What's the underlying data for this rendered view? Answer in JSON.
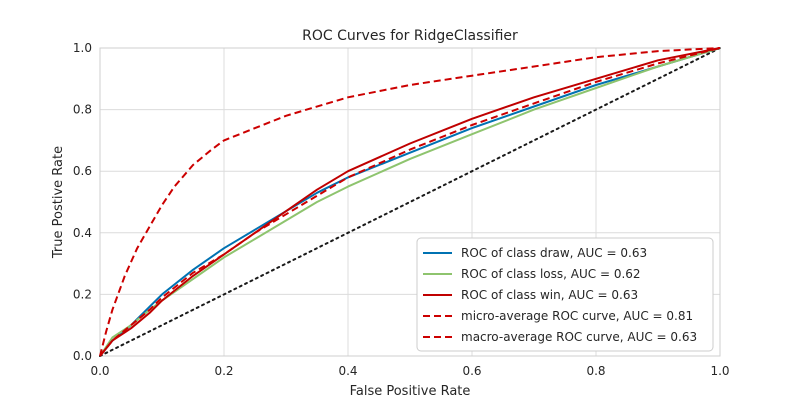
{
  "chart_data": {
    "type": "line",
    "title": "ROC Curves for RidgeClassifier",
    "xlabel": "False Positive Rate",
    "ylabel": "True Postive Rate",
    "xlim": [
      0,
      1
    ],
    "ylim": [
      0,
      1
    ],
    "xticks": [
      "0.0",
      "0.2",
      "0.4",
      "0.6",
      "0.8",
      "1.0"
    ],
    "yticks": [
      "0.0",
      "0.2",
      "0.4",
      "0.6",
      "0.8",
      "1.0"
    ],
    "grid": true,
    "legend_position": "lower-right",
    "series": [
      {
        "name": "ROC of class draw, AUC = 0.63",
        "color": "#0072B2",
        "dash": "solid",
        "points": [
          [
            0,
            0
          ],
          [
            0.02,
            0.05
          ],
          [
            0.05,
            0.1
          ],
          [
            0.08,
            0.16
          ],
          [
            0.1,
            0.2
          ],
          [
            0.15,
            0.28
          ],
          [
            0.2,
            0.35
          ],
          [
            0.25,
            0.41
          ],
          [
            0.3,
            0.47
          ],
          [
            0.35,
            0.53
          ],
          [
            0.4,
            0.58
          ],
          [
            0.5,
            0.66
          ],
          [
            0.6,
            0.74
          ],
          [
            0.7,
            0.81
          ],
          [
            0.8,
            0.88
          ],
          [
            0.9,
            0.94
          ],
          [
            1,
            1
          ]
        ]
      },
      {
        "name": "ROC of class loss, AUC = 0.62",
        "color": "#8EC46E",
        "dash": "solid",
        "points": [
          [
            0,
            0
          ],
          [
            0.02,
            0.06
          ],
          [
            0.05,
            0.1
          ],
          [
            0.08,
            0.15
          ],
          [
            0.1,
            0.18
          ],
          [
            0.15,
            0.25
          ],
          [
            0.2,
            0.32
          ],
          [
            0.25,
            0.38
          ],
          [
            0.3,
            0.44
          ],
          [
            0.35,
            0.5
          ],
          [
            0.4,
            0.55
          ],
          [
            0.5,
            0.64
          ],
          [
            0.6,
            0.72
          ],
          [
            0.7,
            0.8
          ],
          [
            0.8,
            0.87
          ],
          [
            0.9,
            0.94
          ],
          [
            1,
            1
          ]
        ]
      },
      {
        "name": "ROC of class win, AUC = 0.63",
        "color": "#C00000",
        "dash": "solid",
        "points": [
          [
            0,
            0
          ],
          [
            0.02,
            0.05
          ],
          [
            0.05,
            0.09
          ],
          [
            0.08,
            0.14
          ],
          [
            0.1,
            0.18
          ],
          [
            0.15,
            0.26
          ],
          [
            0.2,
            0.33
          ],
          [
            0.25,
            0.4
          ],
          [
            0.3,
            0.47
          ],
          [
            0.35,
            0.54
          ],
          [
            0.4,
            0.6
          ],
          [
            0.5,
            0.69
          ],
          [
            0.6,
            0.77
          ],
          [
            0.7,
            0.84
          ],
          [
            0.8,
            0.9
          ],
          [
            0.9,
            0.96
          ],
          [
            1,
            1
          ]
        ]
      },
      {
        "name": "micro-average ROC curve, AUC = 0.81",
        "color": "#CC0000",
        "dash": "dashed",
        "points": [
          [
            0,
            0
          ],
          [
            0.01,
            0.08
          ],
          [
            0.02,
            0.15
          ],
          [
            0.04,
            0.26
          ],
          [
            0.06,
            0.35
          ],
          [
            0.08,
            0.42
          ],
          [
            0.1,
            0.49
          ],
          [
            0.12,
            0.55
          ],
          [
            0.15,
            0.62
          ],
          [
            0.18,
            0.67
          ],
          [
            0.2,
            0.7
          ],
          [
            0.25,
            0.74
          ],
          [
            0.3,
            0.78
          ],
          [
            0.4,
            0.84
          ],
          [
            0.5,
            0.88
          ],
          [
            0.6,
            0.91
          ],
          [
            0.7,
            0.94
          ],
          [
            0.8,
            0.97
          ],
          [
            0.9,
            0.99
          ],
          [
            1,
            1
          ]
        ]
      },
      {
        "name": "macro-average ROC curve, AUC = 0.63",
        "color": "#CC0000",
        "dash": "dashed",
        "points": [
          [
            0,
            0
          ],
          [
            0.02,
            0.05
          ],
          [
            0.05,
            0.1
          ],
          [
            0.08,
            0.15
          ],
          [
            0.1,
            0.19
          ],
          [
            0.15,
            0.27
          ],
          [
            0.2,
            0.33
          ],
          [
            0.25,
            0.4
          ],
          [
            0.3,
            0.46
          ],
          [
            0.35,
            0.52
          ],
          [
            0.4,
            0.58
          ],
          [
            0.5,
            0.67
          ],
          [
            0.6,
            0.75
          ],
          [
            0.7,
            0.82
          ],
          [
            0.8,
            0.89
          ],
          [
            0.9,
            0.95
          ],
          [
            1,
            1
          ]
        ]
      }
    ],
    "reference_line": {
      "color": "#1a1a1a",
      "dash": "dotted",
      "points": [
        [
          0,
          0
        ],
        [
          1,
          1
        ]
      ]
    }
  }
}
